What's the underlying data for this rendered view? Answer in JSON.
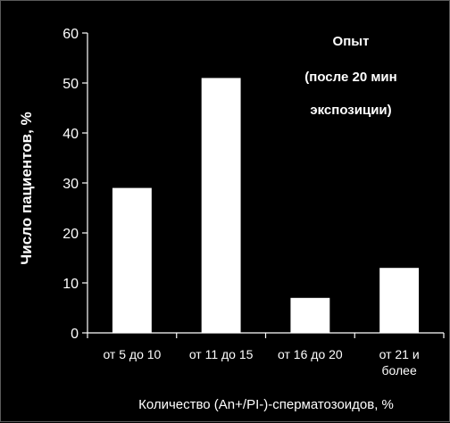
{
  "chart_data": {
    "type": "bar",
    "categories": [
      [
        "от 5 до 10"
      ],
      [
        "от 11 до 15"
      ],
      [
        "от 16 до 20"
      ],
      [
        "от 21 и",
        "более"
      ]
    ],
    "values": [
      29,
      51,
      7,
      13
    ],
    "ylabel": "Число пациентов, %",
    "xlabel": "Количество (An+/PI-)-сперматозоидов, %",
    "ylim": [
      0,
      60
    ],
    "yticks": [
      0,
      10,
      20,
      30,
      40,
      50,
      60
    ],
    "grid": false,
    "annotation": [
      "Опыт",
      "(после 20 мин",
      "экспозиции)"
    ],
    "colors": {
      "background": "#000000",
      "bar": "#ffffff",
      "axis": "#ffffff",
      "text": "#ffffff"
    }
  }
}
